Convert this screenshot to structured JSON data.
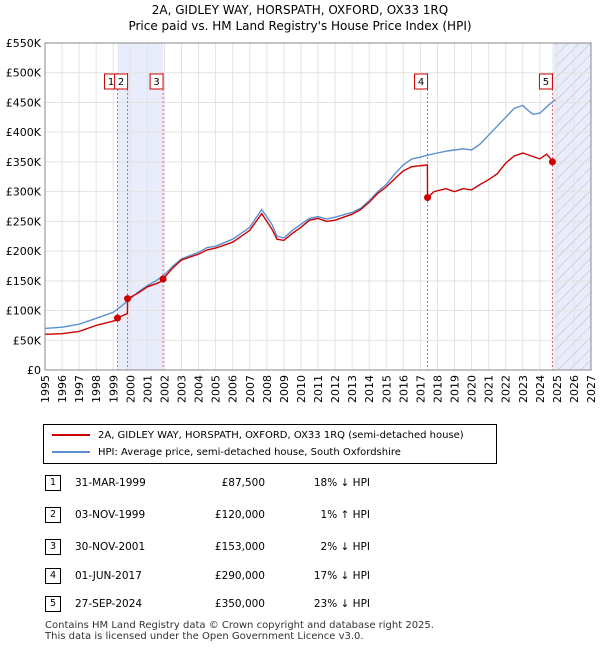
{
  "chart_data": {
    "type": "line",
    "title": "2A, GIDLEY WAY, HORSPATH, OXFORD, OX33 1RQ",
    "subtitle": "Price paid vs. HM Land Registry's House Price Index (HPI)",
    "xlim": [
      1995,
      2027
    ],
    "ylim": [
      0,
      550000
    ],
    "x_ticks": [
      "1995",
      "1996",
      "1997",
      "1998",
      "1999",
      "2000",
      "2001",
      "2002",
      "2003",
      "2004",
      "2005",
      "2006",
      "2007",
      "2008",
      "2009",
      "2010",
      "2011",
      "2012",
      "2013",
      "2014",
      "2015",
      "2016",
      "2017",
      "2018",
      "2019",
      "2020",
      "2021",
      "2022",
      "2023",
      "2024",
      "2025",
      "2026",
      "2027"
    ],
    "y_ticks": [
      {
        "value": 0,
        "label": "£0"
      },
      {
        "value": 50000,
        "label": "£50K"
      },
      {
        "value": 100000,
        "label": "£100K"
      },
      {
        "value": 150000,
        "label": "£150K"
      },
      {
        "value": 200000,
        "label": "£200K"
      },
      {
        "value": 250000,
        "label": "£250K"
      },
      {
        "value": 300000,
        "label": "£300K"
      },
      {
        "value": 350000,
        "label": "£350K"
      },
      {
        "value": 400000,
        "label": "£400K"
      },
      {
        "value": 450000,
        "label": "£450K"
      },
      {
        "value": 500000,
        "label": "£500K"
      },
      {
        "value": 550000,
        "label": "£550K"
      }
    ],
    "shaded_periods": [
      [
        1999.25,
        2001.92
      ],
      [
        2024.74,
        2027
      ]
    ],
    "hatched_from": 2024.9,
    "series": [
      {
        "name": "2A, GIDLEY WAY, HORSPATH, OXFORD, OX33 1RQ (semi-detached house)",
        "color": "#cc0000",
        "points": [
          [
            1995,
            60000
          ],
          [
            1996,
            61000
          ],
          [
            1997,
            65000
          ],
          [
            1998,
            75000
          ],
          [
            1999.24,
            84000
          ],
          [
            1999.25,
            87500
          ],
          [
            1999.83,
            95000
          ],
          [
            1999.84,
            120000
          ],
          [
            2000.5,
            130000
          ],
          [
            2001,
            140000
          ],
          [
            2001.5,
            145000
          ],
          [
            2001.91,
            150000
          ],
          [
            2001.92,
            153000
          ],
          [
            2002.5,
            172000
          ],
          [
            2003,
            185000
          ],
          [
            2004,
            195000
          ],
          [
            2004.5,
            202000
          ],
          [
            2005,
            205000
          ],
          [
            2006,
            215000
          ],
          [
            2007,
            235000
          ],
          [
            2007.7,
            263000
          ],
          [
            2008.3,
            237000
          ],
          [
            2008.6,
            220000
          ],
          [
            2009,
            218000
          ],
          [
            2009.5,
            230000
          ],
          [
            2010,
            240000
          ],
          [
            2010.5,
            252000
          ],
          [
            2011,
            255000
          ],
          [
            2011.5,
            250000
          ],
          [
            2012,
            252000
          ],
          [
            2013,
            262000
          ],
          [
            2013.5,
            270000
          ],
          [
            2014,
            282000
          ],
          [
            2014.5,
            297000
          ],
          [
            2015,
            308000
          ],
          [
            2015.5,
            322000
          ],
          [
            2016,
            335000
          ],
          [
            2016.5,
            342000
          ],
          [
            2017.41,
            345000
          ],
          [
            2017.42,
            290000
          ],
          [
            2017.8,
            300000
          ],
          [
            2018.5,
            305000
          ],
          [
            2019,
            300000
          ],
          [
            2019.5,
            305000
          ],
          [
            2020,
            303000
          ],
          [
            2020.5,
            312000
          ],
          [
            2021,
            320000
          ],
          [
            2021.5,
            330000
          ],
          [
            2022,
            348000
          ],
          [
            2022.5,
            360000
          ],
          [
            2023,
            365000
          ],
          [
            2023.5,
            360000
          ],
          [
            2024,
            355000
          ],
          [
            2024.4,
            363000
          ],
          [
            2024.73,
            352000
          ],
          [
            2024.74,
            350000
          ],
          [
            2024.9,
            352000
          ]
        ]
      },
      {
        "name": "HPI: Average price, semi-detached house, South Oxfordshire",
        "color": "#5b8fd1",
        "points": [
          [
            1995,
            70000
          ],
          [
            1996,
            72000
          ],
          [
            1997,
            77000
          ],
          [
            1998,
            87000
          ],
          [
            1999,
            97000
          ],
          [
            1999.5,
            108000
          ],
          [
            2000,
            120000
          ],
          [
            2000.5,
            132000
          ],
          [
            2001,
            142000
          ],
          [
            2001.5,
            150000
          ],
          [
            2002,
            160000
          ],
          [
            2002.5,
            175000
          ],
          [
            2003,
            187000
          ],
          [
            2004,
            198000
          ],
          [
            2004.5,
            206000
          ],
          [
            2005,
            208000
          ],
          [
            2006,
            220000
          ],
          [
            2007,
            240000
          ],
          [
            2007.7,
            270000
          ],
          [
            2008.3,
            245000
          ],
          [
            2008.6,
            225000
          ],
          [
            2009,
            222000
          ],
          [
            2009.5,
            235000
          ],
          [
            2010,
            245000
          ],
          [
            2010.5,
            255000
          ],
          [
            2011,
            258000
          ],
          [
            2011.5,
            254000
          ],
          [
            2012,
            257000
          ],
          [
            2013,
            265000
          ],
          [
            2013.5,
            272000
          ],
          [
            2014,
            285000
          ],
          [
            2014.5,
            300000
          ],
          [
            2015,
            312000
          ],
          [
            2015.5,
            330000
          ],
          [
            2016,
            345000
          ],
          [
            2016.5,
            355000
          ],
          [
            2017,
            358000
          ],
          [
            2017.5,
            362000
          ],
          [
            2018,
            365000
          ],
          [
            2018.5,
            368000
          ],
          [
            2019,
            370000
          ],
          [
            2019.5,
            372000
          ],
          [
            2020,
            370000
          ],
          [
            2020.5,
            380000
          ],
          [
            2021,
            395000
          ],
          [
            2021.5,
            410000
          ],
          [
            2022,
            425000
          ],
          [
            2022.5,
            440000
          ],
          [
            2023,
            445000
          ],
          [
            2023.3,
            437000
          ],
          [
            2023.6,
            430000
          ],
          [
            2024,
            432000
          ],
          [
            2024.5,
            445000
          ],
          [
            2024.9,
            455000
          ]
        ]
      }
    ],
    "sales": [
      {
        "label": "1",
        "x": 1999.25,
        "y": 87500
      },
      {
        "label": "2",
        "x": 1999.84,
        "y": 120000
      },
      {
        "label": "3",
        "x": 2001.92,
        "y": 153000
      },
      {
        "label": "4",
        "x": 2017.42,
        "y": 290000
      },
      {
        "label": "5",
        "x": 2024.74,
        "y": 350000
      }
    ]
  },
  "legend": {
    "series_red": "2A, GIDLEY WAY, HORSPATH, OXFORD, OX33 1RQ (semi-detached house)",
    "series_blue": "HPI: Average price, semi-detached house, South Oxfordshire",
    "color_red": "#cc0000",
    "color_blue": "#5b8fd1"
  },
  "transactions": [
    {
      "num": "1",
      "date": "31-MAR-1999",
      "price": "£87,500",
      "hpi": "18% ↓ HPI"
    },
    {
      "num": "2",
      "date": "03-NOV-1999",
      "price": "£120,000",
      "hpi": "1% ↑ HPI"
    },
    {
      "num": "3",
      "date": "30-NOV-2001",
      "price": "£153,000",
      "hpi": "2% ↓ HPI"
    },
    {
      "num": "4",
      "date": "01-JUN-2017",
      "price": "£290,000",
      "hpi": "17% ↓ HPI"
    },
    {
      "num": "5",
      "date": "27-SEP-2024",
      "price": "£350,000",
      "hpi": "23% ↓ HPI"
    }
  ],
  "footer": {
    "line1": "Contains HM Land Registry data © Crown copyright and database right 2025.",
    "line2": "This data is licensed under the Open Government Licence v3.0."
  }
}
